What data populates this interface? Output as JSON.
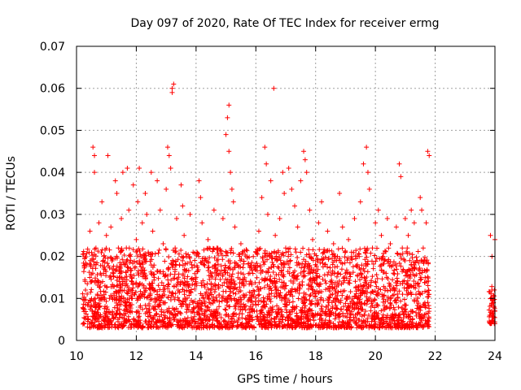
{
  "chart_data": {
    "type": "scatter",
    "title": "Day 097 of 2020, Rate Of TEC Index for receiver ermg",
    "xlabel": "GPS time / hours",
    "ylabel": "ROTI / TECUs",
    "xlim": [
      10,
      24
    ],
    "ylim": [
      0,
      0.07
    ],
    "x_ticks": [
      "10",
      "12",
      "14",
      "16",
      "18",
      "20",
      "22",
      "24"
    ],
    "y_ticks": [
      "0",
      "0.01",
      "0.02",
      "0.03",
      "0.04",
      "0.05",
      "0.06",
      "0.07"
    ],
    "grid": true,
    "marker": "+",
    "color": "#ff0000",
    "series": [
      {
        "points": [
          [
            10.3,
            0.012
          ],
          [
            10.35,
            0.018
          ],
          [
            10.4,
            0.009
          ],
          [
            10.45,
            0.026
          ],
          [
            10.5,
            0.014
          ],
          [
            10.55,
            0.046
          ],
          [
            10.6,
            0.044
          ],
          [
            10.6,
            0.04
          ],
          [
            10.65,
            0.022
          ],
          [
            10.7,
            0.011
          ],
          [
            10.75,
            0.028
          ],
          [
            10.8,
            0.016
          ],
          [
            10.85,
            0.033
          ],
          [
            10.9,
            0.019
          ],
          [
            10.95,
            0.013
          ],
          [
            11.0,
            0.025
          ],
          [
            11.05,
            0.044
          ],
          [
            11.1,
            0.01
          ],
          [
            11.15,
            0.027
          ],
          [
            11.2,
            0.017
          ],
          [
            11.3,
            0.038
          ],
          [
            11.35,
            0.035
          ],
          [
            11.4,
            0.022
          ],
          [
            11.45,
            0.012
          ],
          [
            11.5,
            0.029
          ],
          [
            11.55,
            0.04
          ],
          [
            11.6,
            0.018
          ],
          [
            11.65,
            0.009
          ],
          [
            11.7,
            0.041
          ],
          [
            11.75,
            0.031
          ],
          [
            11.8,
            0.02
          ],
          [
            11.85,
            0.014
          ],
          [
            11.9,
            0.037
          ],
          [
            11.95,
            0.011
          ],
          [
            12.0,
            0.024
          ],
          [
            12.05,
            0.033
          ],
          [
            12.1,
            0.041
          ],
          [
            12.15,
            0.016
          ],
          [
            12.2,
            0.028
          ],
          [
            12.25,
            0.013
          ],
          [
            12.3,
            0.035
          ],
          [
            12.35,
            0.03
          ],
          [
            12.4,
            0.021
          ],
          [
            12.5,
            0.04
          ],
          [
            12.55,
            0.026
          ],
          [
            12.6,
            0.015
          ],
          [
            12.7,
            0.038
          ],
          [
            12.8,
            0.031
          ],
          [
            12.9,
            0.023
          ],
          [
            13.0,
            0.036
          ],
          [
            13.05,
            0.046
          ],
          [
            13.1,
            0.044
          ],
          [
            13.15,
            0.041
          ],
          [
            13.2,
            0.06
          ],
          [
            13.2,
            0.059
          ],
          [
            13.25,
            0.061
          ],
          [
            13.3,
            0.022
          ],
          [
            13.35,
            0.029
          ],
          [
            13.4,
            0.012
          ],
          [
            13.45,
            0.018
          ],
          [
            13.5,
            0.037
          ],
          [
            13.55,
            0.032
          ],
          [
            13.6,
            0.025
          ],
          [
            13.7,
            0.014
          ],
          [
            13.8,
            0.03
          ],
          [
            13.9,
            0.021
          ],
          [
            14.0,
            0.015
          ],
          [
            14.1,
            0.038
          ],
          [
            14.15,
            0.034
          ],
          [
            14.2,
            0.028
          ],
          [
            14.3,
            0.019
          ],
          [
            14.4,
            0.024
          ],
          [
            14.5,
            0.012
          ],
          [
            14.6,
            0.031
          ],
          [
            14.7,
            0.022
          ],
          [
            14.8,
            0.016
          ],
          [
            14.9,
            0.029
          ],
          [
            15.0,
            0.049
          ],
          [
            15.05,
            0.053
          ],
          [
            15.1,
            0.056
          ],
          [
            15.1,
            0.045
          ],
          [
            15.15,
            0.04
          ],
          [
            15.2,
            0.036
          ],
          [
            15.25,
            0.033
          ],
          [
            15.3,
            0.027
          ],
          [
            15.4,
            0.018
          ],
          [
            15.5,
            0.023
          ],
          [
            15.6,
            0.013
          ],
          [
            15.7,
            0.02
          ],
          [
            15.8,
            0.016
          ],
          [
            15.9,
            0.011
          ],
          [
            16.0,
            0.021
          ],
          [
            16.1,
            0.026
          ],
          [
            16.2,
            0.034
          ],
          [
            16.3,
            0.046
          ],
          [
            16.35,
            0.042
          ],
          [
            16.4,
            0.03
          ],
          [
            16.5,
            0.038
          ],
          [
            16.6,
            0.06
          ],
          [
            16.65,
            0.025
          ],
          [
            16.7,
            0.019
          ],
          [
            16.8,
            0.029
          ],
          [
            16.9,
            0.04
          ],
          [
            16.95,
            0.035
          ],
          [
            17.0,
            0.022
          ],
          [
            17.1,
            0.041
          ],
          [
            17.2,
            0.036
          ],
          [
            17.3,
            0.032
          ],
          [
            17.4,
            0.027
          ],
          [
            17.5,
            0.038
          ],
          [
            17.6,
            0.045
          ],
          [
            17.65,
            0.043
          ],
          [
            17.7,
            0.04
          ],
          [
            17.8,
            0.031
          ],
          [
            17.9,
            0.024
          ],
          [
            18.0,
            0.018
          ],
          [
            18.1,
            0.028
          ],
          [
            18.2,
            0.033
          ],
          [
            18.3,
            0.021
          ],
          [
            18.4,
            0.026
          ],
          [
            18.5,
            0.014
          ],
          [
            18.6,
            0.023
          ],
          [
            18.7,
            0.019
          ],
          [
            18.8,
            0.035
          ],
          [
            18.9,
            0.027
          ],
          [
            19.0,
            0.016
          ],
          [
            19.1,
            0.024
          ],
          [
            19.2,
            0.021
          ],
          [
            19.3,
            0.029
          ],
          [
            19.4,
            0.018
          ],
          [
            19.5,
            0.033
          ],
          [
            19.6,
            0.042
          ],
          [
            19.7,
            0.046
          ],
          [
            19.75,
            0.04
          ],
          [
            19.8,
            0.036
          ],
          [
            19.9,
            0.022
          ],
          [
            20.0,
            0.028
          ],
          [
            20.1,
            0.031
          ],
          [
            20.2,
            0.025
          ],
          [
            20.3,
            0.019
          ],
          [
            20.4,
            0.029
          ],
          [
            20.5,
            0.023
          ],
          [
            20.6,
            0.016
          ],
          [
            20.7,
            0.027
          ],
          [
            20.8,
            0.042
          ],
          [
            20.85,
            0.039
          ],
          [
            20.9,
            0.022
          ],
          [
            21.0,
            0.029
          ],
          [
            21.1,
            0.025
          ],
          [
            21.2,
            0.031
          ],
          [
            21.3,
            0.028
          ],
          [
            21.4,
            0.019
          ],
          [
            21.5,
            0.034
          ],
          [
            21.55,
            0.031
          ],
          [
            21.6,
            0.022
          ],
          [
            21.7,
            0.028
          ],
          [
            21.75,
            0.045
          ],
          [
            21.8,
            0.044
          ],
          [
            23.85,
            0.025
          ],
          [
            23.9,
            0.02
          ],
          [
            23.9,
            0.012
          ],
          [
            23.95,
            0.009
          ],
          [
            24.0,
            0.024
          ],
          [
            24.0,
            0.007
          ]
        ],
        "dense_bands": [
          {
            "x_range": [
              10.2,
              21.8
            ],
            "y_range": [
              0.003,
              0.022
            ]
          },
          {
            "x_range": [
              23.8,
              24.0
            ],
            "y_range": [
              0.004,
              0.013
            ]
          }
        ]
      }
    ]
  }
}
